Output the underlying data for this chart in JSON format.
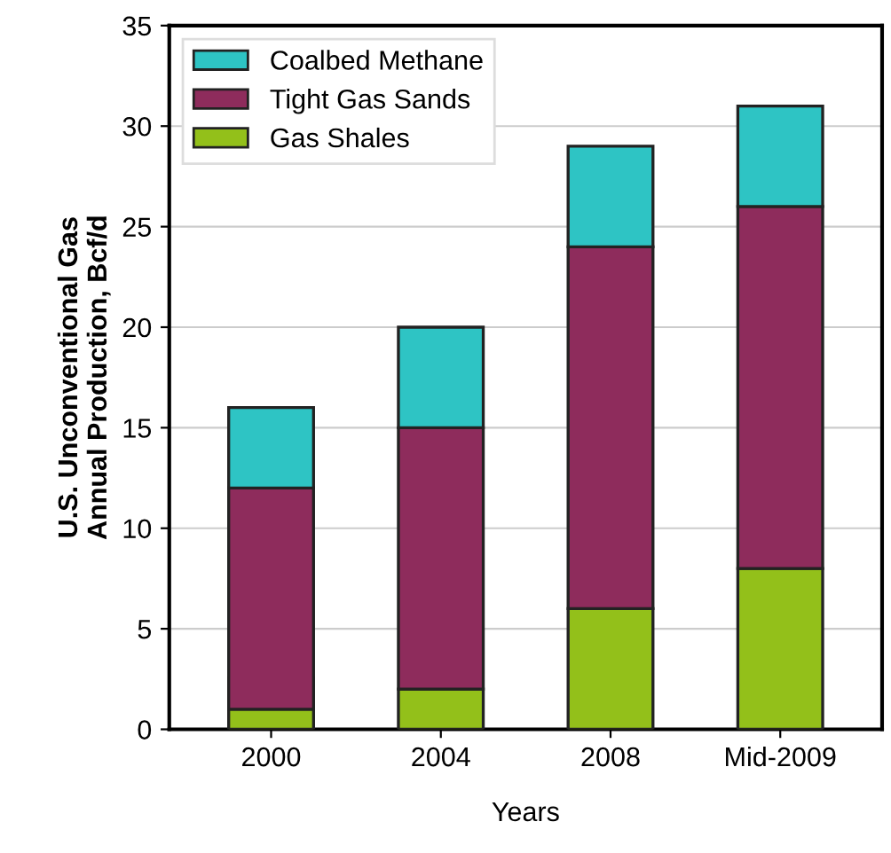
{
  "chart_data": {
    "type": "bar",
    "stacked": true,
    "xlabel": "Years",
    "ylabel": "U.S. Unconventional Gas\nAnnual Production, Bcf/d",
    "categories": [
      "2000",
      "2004",
      "2008",
      "Mid-2009"
    ],
    "series": [
      {
        "name": "Gas Shales",
        "color": "#93c01a",
        "values": [
          1,
          2,
          6,
          8
        ]
      },
      {
        "name": "Tight Gas Sands",
        "color": "#8e2c5c",
        "values": [
          11,
          13,
          18,
          18
        ]
      },
      {
        "name": "Coalbed Methane",
        "color": "#2ec4c4",
        "values": [
          4,
          5,
          5,
          5
        ]
      }
    ],
    "ylim": [
      0,
      35
    ],
    "yticks": [
      0,
      5,
      10,
      15,
      20,
      25,
      30,
      35
    ],
    "grid": "y",
    "legend": "top left"
  }
}
